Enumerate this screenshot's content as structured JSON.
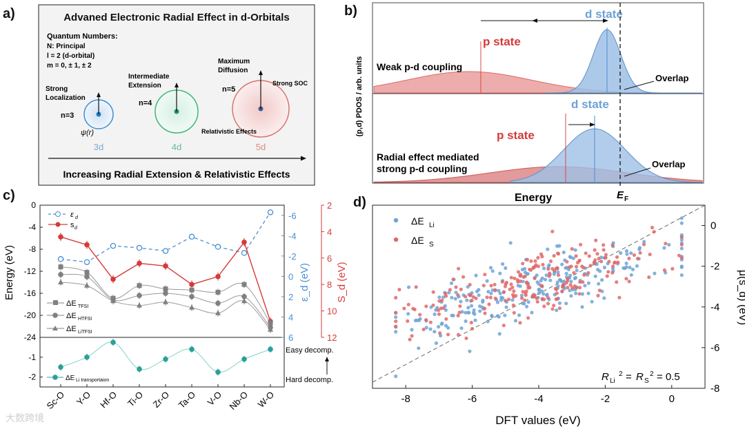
{
  "panel_a": {
    "letter": "a)",
    "title": "Advaned Electronic Radial Effect in d-Orbitals",
    "quantum_heading": "Quantum Numbers:",
    "quantum_lines": [
      "N: Principal",
      "l = 2 (d-orbital)",
      "m = 0, ± 1, ± 2"
    ],
    "orbitals": [
      {
        "n_label": "n=3",
        "caption": "3d",
        "note_lines": [
          "Strong",
          "Localization"
        ],
        "wave": "ψ(r)",
        "color": "#3d8fd0",
        "fill": "#dbe9f7"
      },
      {
        "n_label": "n=4",
        "caption": "4d",
        "note_lines": [
          "Intermediate",
          "Extension"
        ],
        "color": "#3fb37f",
        "fill": "#def3e8"
      },
      {
        "n_label": "n=5",
        "caption": "5d",
        "note_lines": [
          "Maximum",
          "Diffusion"
        ],
        "extra_top": "Strong SOC",
        "extra_bottom": "Relativistic Effects",
        "color": "#d9736b",
        "fill": "#f6dcdc"
      }
    ],
    "footer": "Increasing Radial Extension & Relativistic Effects"
  },
  "panel_b": {
    "letter": "b)",
    "ylabel": "(p,d) PDOS / arb. units",
    "xlabel": "Energy",
    "fermi_label": "E",
    "fermi_sub": "F",
    "top": {
      "d_label": "d state",
      "p_label": "p state",
      "coupling": "Weak p-d coupling",
      "overlap": "Overlap"
    },
    "bottom": {
      "d_label": "d state",
      "p_label": "p state",
      "coupling_lines": [
        "Radial effect mediated",
        "strong p-d coupling"
      ],
      "overlap": "Overlap"
    },
    "colors": {
      "d": "#7aa8d8",
      "p": "#e07070"
    }
  },
  "panel_c": {
    "letter": "c)",
    "chart_data": {
      "type": "line",
      "categories": [
        "Sc-O",
        "Y-O",
        "Hf-O",
        "Ti-O",
        "Zr-O",
        "Ta-O",
        "V-O",
        "Nb-O",
        "W-O"
      ],
      "left_axis": {
        "label": "Energy (eV)",
        "ylim": [
          -24,
          0
        ],
        "ticks": [
          "0",
          "-4",
          "-8",
          "-12",
          "-16",
          "-20",
          "-24"
        ]
      },
      "eps_axis": {
        "label": "ε_d (eV)",
        "ylim": [
          6,
          -7
        ],
        "ticks": [
          "-6",
          "-4",
          "-2",
          "0",
          "2",
          "4",
          "6"
        ]
      },
      "sd_axis": {
        "label": "S_d (eV)",
        "ylim": [
          12,
          2
        ],
        "ticks": [
          "2",
          "4",
          "6",
          "8",
          "10",
          "12"
        ]
      },
      "lower_axis": {
        "ylim": [
          -2.5,
          0
        ],
        "ticks": [
          "-1",
          "-2"
        ]
      },
      "series": [
        {
          "name": "ε_d",
          "axis": "eps",
          "color": "#4a8fd0",
          "style": "dashed-open",
          "values": [
            -1.7,
            -1.4,
            -3.0,
            -2.8,
            -2.5,
            -3.9,
            -2.9,
            -2.3,
            -6.3
          ]
        },
        {
          "name": "s_d",
          "axis": "sd",
          "color": "#d63a3a",
          "style": "solid",
          "values": [
            4.4,
            5.0,
            7.6,
            6.4,
            6.6,
            8.0,
            7.4,
            4.8,
            10.8
          ]
        },
        {
          "name": "ΔE_TFSI",
          "axis": "left",
          "color": "#808080",
          "marker": "square",
          "values": [
            -11.2,
            -12.2,
            -16.9,
            -14.6,
            -15.2,
            -15.4,
            -15.8,
            -14.4,
            -21.4
          ]
        },
        {
          "name": "ΔE_HTFSI",
          "axis": "left",
          "color": "#808080",
          "marker": "circle",
          "values": [
            -12.6,
            -13.0,
            -17.2,
            -16.4,
            -16.0,
            -16.6,
            -17.8,
            -16.6,
            -22.2
          ]
        },
        {
          "name": "ΔE_LiTFSI",
          "axis": "left",
          "color": "#808080",
          "marker": "triangle",
          "values": [
            -14.0,
            -14.6,
            -17.4,
            -18.2,
            -17.6,
            -18.6,
            -19.6,
            -17.4,
            -22.6
          ]
        },
        {
          "name": "ΔE_Li transportaion",
          "axis": "lower",
          "color": "#2aa198",
          "marker": "circle",
          "values": [
            -1.5,
            -1.0,
            -0.25,
            -1.6,
            -1.1,
            -0.6,
            -1.75,
            -1.1,
            -0.6
          ]
        }
      ],
      "legend_top": [
        "ε",
        "s"
      ],
      "legend_top_subs": [
        "d",
        "d"
      ],
      "legend_bottom": [
        "ΔE",
        "ΔE",
        "ΔE"
      ],
      "legend_bottom_subs": [
        "TFSI",
        "HTFSI",
        "LiTFSI"
      ],
      "lower_legend": "ΔE",
      "lower_legend_sub": "Li transportaion",
      "easy_label": "Easy decomp.",
      "hard_label": "Hard decomp."
    }
  },
  "panel_d": {
    "letter": "d)",
    "chart_data": {
      "type": "scatter",
      "xlabel": "DFT values (eV)",
      "ylabel": "μ(s_d) (eV)",
      "xlim": [
        -9,
        1
      ],
      "ylim": [
        -8,
        1
      ],
      "xticks": [
        "-8",
        "-6",
        "-4",
        "-2",
        "0"
      ],
      "yticks": [
        "0",
        "-2",
        "-4",
        "-6",
        "-8"
      ],
      "legend": [
        "ΔE",
        "ΔE"
      ],
      "legend_subs": [
        "Li",
        "S"
      ],
      "annotation": "R",
      "series": [
        {
          "name": "ΔE_Li",
          "color": "#6ea3d6",
          "n_points": 260
        },
        {
          "name": "ΔE_S",
          "color": "#e06868",
          "n_points": 230
        }
      ]
    }
  },
  "watermark": "大数跨境"
}
